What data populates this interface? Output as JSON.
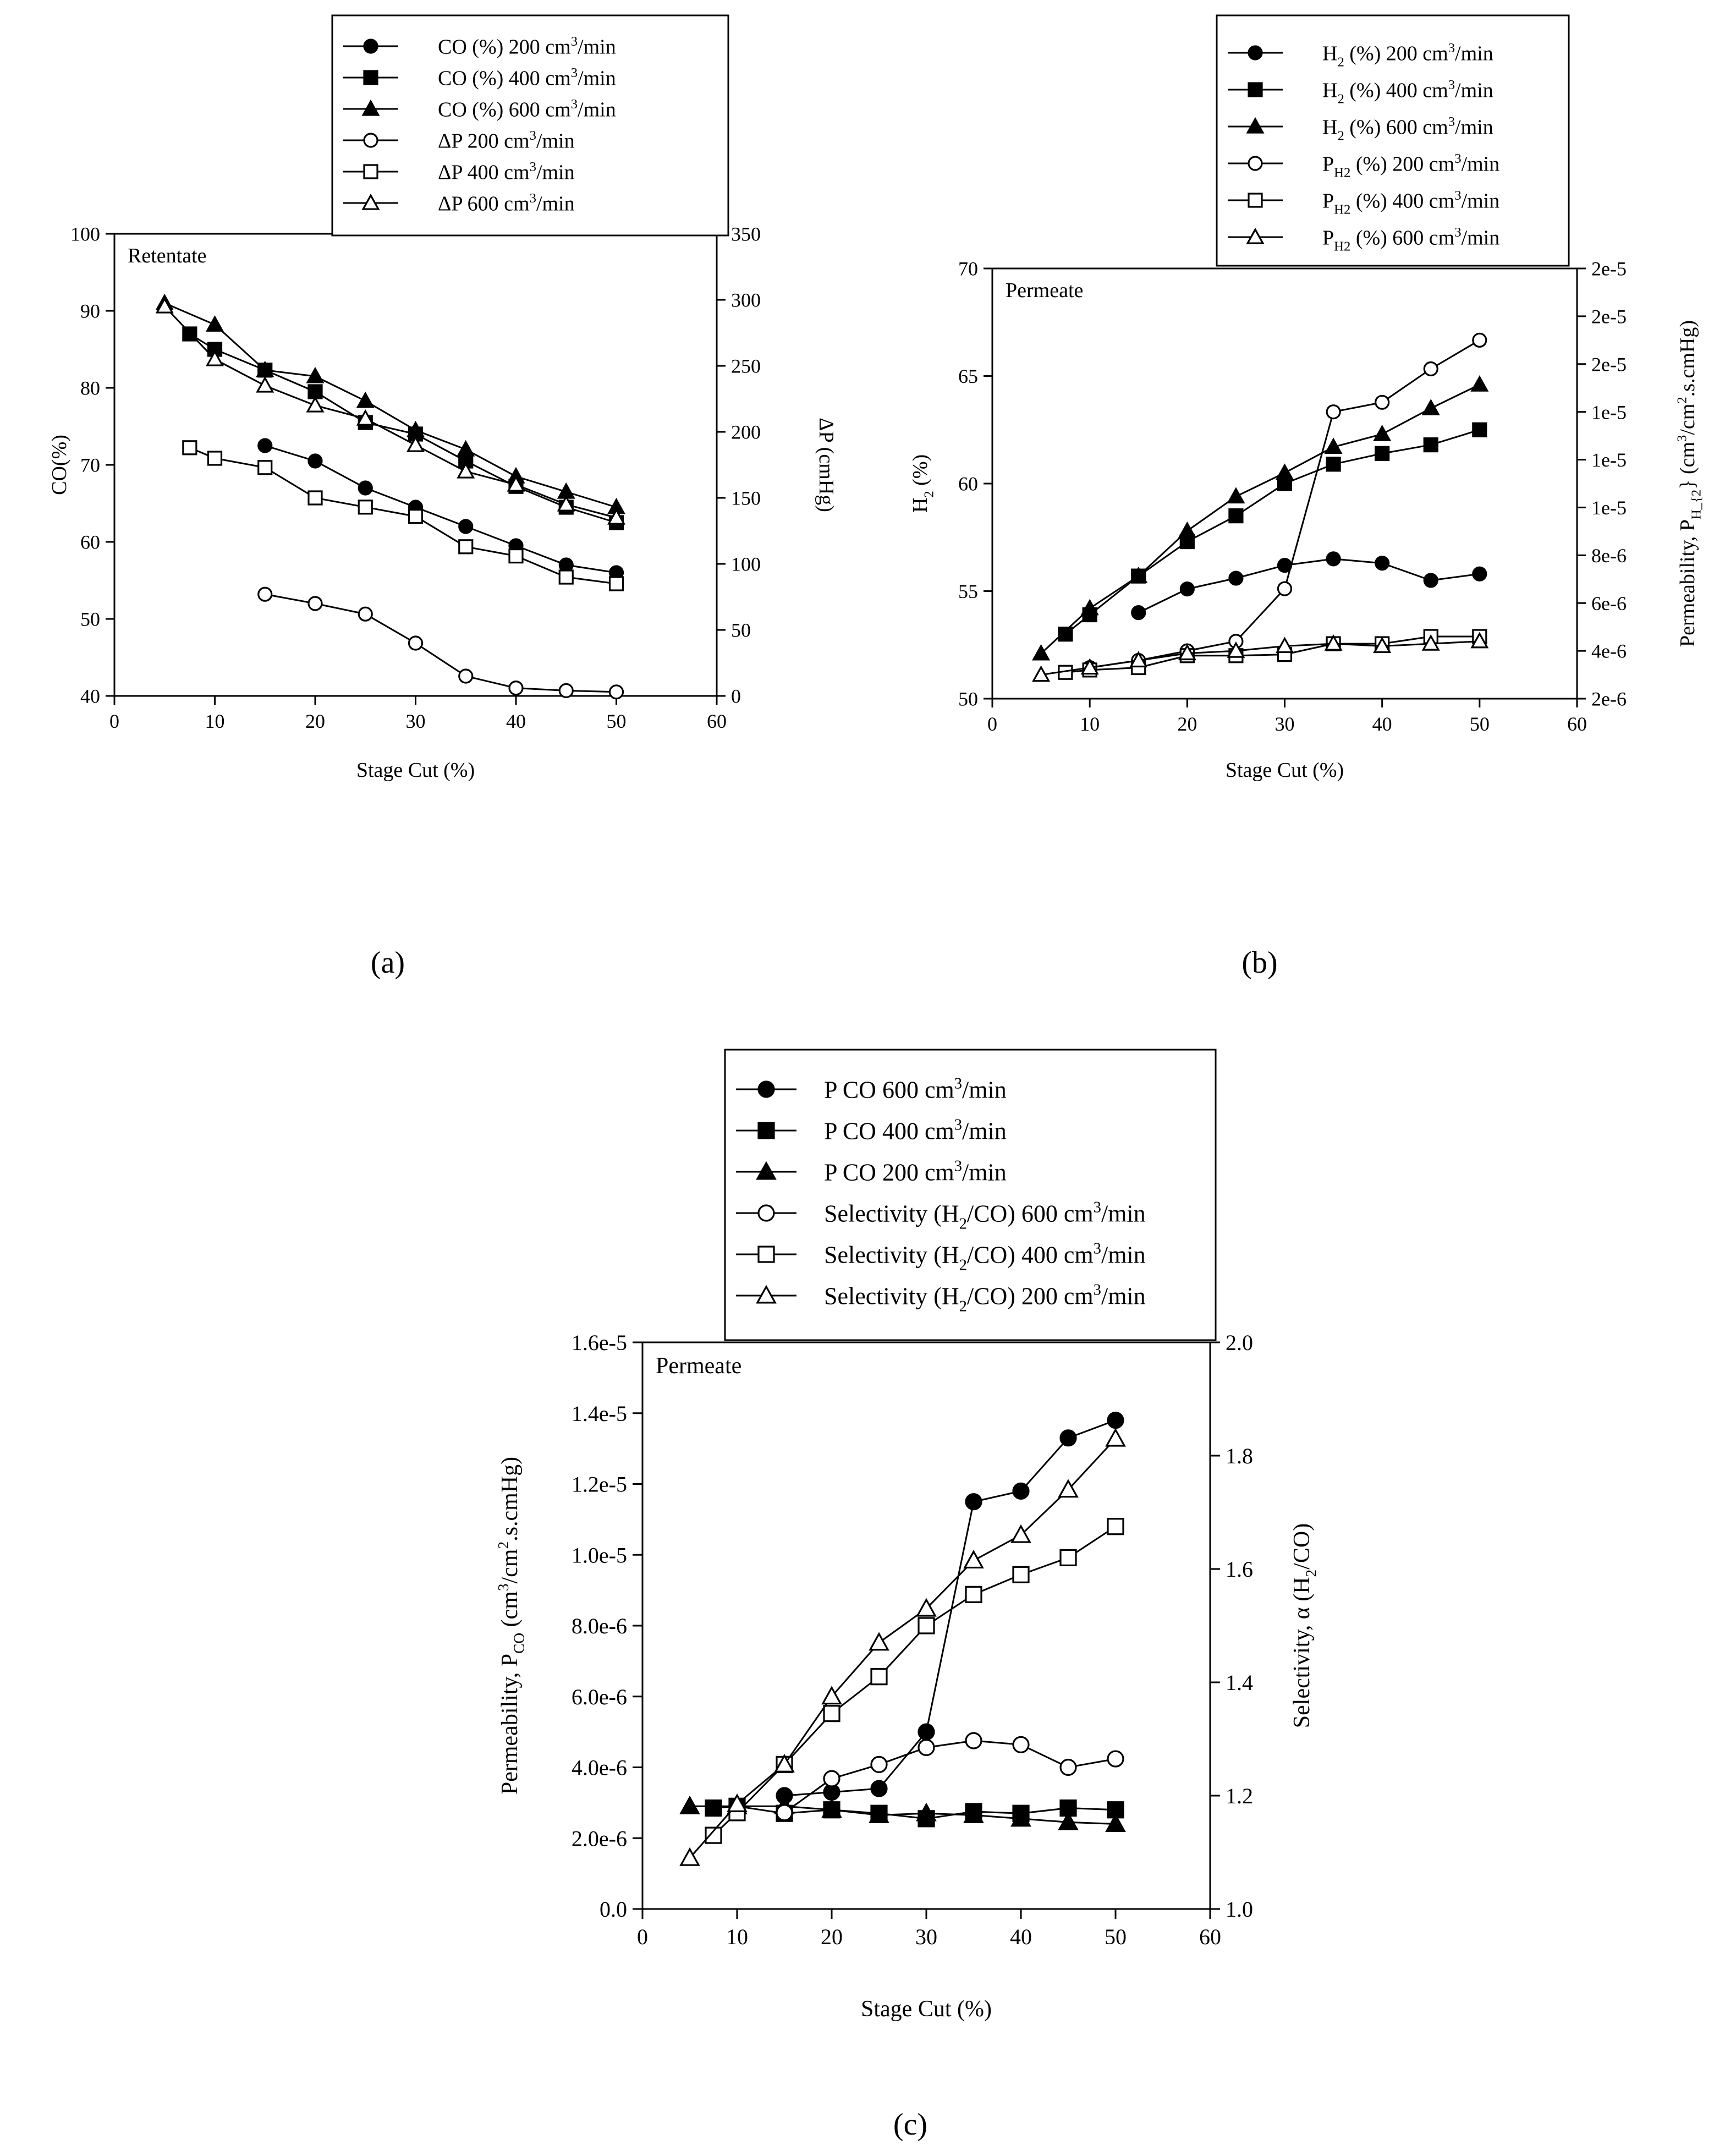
{
  "chart_data": [
    {
      "panel": "a",
      "caption": "(a)",
      "type": "line",
      "annotation": "Retentate",
      "xlabel": "Stage Cut (%)",
      "ylabel_left": "CO(%)",
      "ylabel_right": "ΔP (cmHg)",
      "xlim": [
        0,
        60
      ],
      "ylim_left": [
        40,
        100
      ],
      "ylim_right": [
        0,
        350
      ],
      "x_ticks": [
        0,
        10,
        20,
        30,
        40,
        50,
        60
      ],
      "y_ticks_left": [
        40,
        50,
        60,
        70,
        80,
        90,
        100
      ],
      "y_ticks_right": [
        0,
        50,
        100,
        150,
        200,
        250,
        300,
        350
      ],
      "series": [
        {
          "name": "CO (%) 200 cm³/min",
          "axis": "left",
          "marker": "circle",
          "filled": true,
          "x": [
            15,
            20,
            25,
            30,
            35,
            40,
            45,
            50
          ],
          "values": [
            72.5,
            70.5,
            67,
            64.5,
            62,
            59.5,
            57,
            56
          ]
        },
        {
          "name": "CO (%) 400 cm³/min",
          "axis": "left",
          "marker": "square",
          "filled": true,
          "x": [
            7.5,
            10,
            15,
            20,
            25,
            30,
            35,
            40,
            45,
            50
          ],
          "values": [
            87,
            85,
            82.3,
            79.5,
            75.5,
            74,
            70.5,
            67.2,
            64.5,
            62.5
          ]
        },
        {
          "name": "CO (%) 600 cm³/min",
          "axis": "left",
          "marker": "triangle",
          "filled": true,
          "x": [
            5,
            10,
            15,
            20,
            25,
            30,
            35,
            40,
            45,
            50
          ],
          "values": [
            91,
            88.2,
            82.3,
            81.5,
            78.3,
            74.5,
            72,
            68.5,
            66.5,
            64.5
          ]
        },
        {
          "name": "ΔP 200 cm³/min",
          "axis": "right",
          "marker": "circle",
          "filled": false,
          "x": [
            15,
            20,
            25,
            30,
            35,
            40,
            45,
            50
          ],
          "values": [
            77,
            70,
            62,
            40,
            15,
            6,
            4,
            3
          ]
        },
        {
          "name": "ΔP 400 cm³/min",
          "axis": "right",
          "marker": "square",
          "filled": false,
          "x": [
            7.5,
            10,
            15,
            20,
            25,
            30,
            35,
            40,
            45,
            50
          ],
          "values": [
            188,
            180,
            173,
            150,
            143,
            136,
            113,
            106,
            90,
            85
          ]
        },
        {
          "name": "ΔP 600 cm³/min",
          "axis": "right",
          "marker": "triangle",
          "filled": false,
          "x": [
            5,
            10,
            15,
            20,
            25,
            30,
            35,
            40,
            45,
            50
          ],
          "values": [
            295,
            255,
            235,
            220,
            210,
            190,
            170,
            160,
            145,
            135
          ]
        }
      ]
    },
    {
      "panel": "b",
      "caption": "(b)",
      "type": "line",
      "annotation": "Permeate",
      "xlabel": "Stage Cut (%)",
      "ylabel_left": "H₂ (%)",
      "ylabel_right": "Permeability, P",
      "ylabel_right_subscript": "H₂",
      "ylabel_right_units": "(cm³/cm².s.cmHg)",
      "xlim": [
        0,
        60
      ],
      "ylim_left": [
        50,
        70
      ],
      "ylim_right": [
        2e-06,
        2e-05
      ],
      "x_ticks": [
        0,
        10,
        20,
        30,
        40,
        50,
        60
      ],
      "y_ticks_left": [
        50,
        55,
        60,
        65,
        70
      ],
      "y_tick_labels_right": [
        "2e-6",
        "4e-6",
        "6e-6",
        "8e-6",
        "1e-5",
        "1e-5",
        "1e-5",
        "2e-5",
        "2e-5",
        "2e-5"
      ],
      "series": [
        {
          "name": "H₂ (%) 200 cm³/min",
          "axis": "left",
          "marker": "circle",
          "filled": true,
          "x": [
            15,
            20,
            25,
            30,
            35,
            40,
            45,
            50
          ],
          "values": [
            54,
            55.1,
            55.6,
            56.2,
            56.5,
            56.3,
            55.5,
            55.8
          ]
        },
        {
          "name": "H₂ (%) 400 cm³/min",
          "axis": "left",
          "marker": "square",
          "filled": true,
          "x": [
            7.5,
            10,
            15,
            20,
            25,
            30,
            35,
            40,
            45,
            50
          ],
          "values": [
            53,
            53.9,
            55.7,
            57.3,
            58.5,
            60,
            60.9,
            61.4,
            61.8,
            62.5
          ]
        },
        {
          "name": "H₂ (%) 600 cm³/min",
          "axis": "left",
          "marker": "triangle",
          "filled": true,
          "x": [
            5,
            10,
            15,
            20,
            25,
            30,
            35,
            40,
            45,
            50
          ],
          "values": [
            52.1,
            54.2,
            55.7,
            57.8,
            59.4,
            60.5,
            61.7,
            62.3,
            63.5,
            64.6
          ]
        },
        {
          "name": "P H₂ (%) 200 cm³/min",
          "axis": "right",
          "marker": "circle",
          "filled": false,
          "x": [
            10,
            15,
            20,
            25,
            30,
            35,
            40,
            45,
            50
          ],
          "values": [
            3.3e-06,
            3.6e-06,
            4e-06,
            4.4e-06,
            6.6e-06,
            1.4e-05,
            1.44e-05,
            1.58e-05,
            1.7e-05
          ]
        },
        {
          "name": "P H₂ (%) 400 cm³/min",
          "axis": "right",
          "marker": "square",
          "filled": false,
          "x": [
            7.5,
            10,
            15,
            20,
            25,
            30,
            35,
            40,
            45,
            50
          ],
          "values": [
            3.1e-06,
            3.2e-06,
            3.3e-06,
            3.8e-06,
            3.8e-06,
            3.85e-06,
            4.3e-06,
            4.3e-06,
            4.6e-06,
            4.6e-06
          ]
        },
        {
          "name": "P H₂ (%) 600 cm³/min",
          "axis": "right",
          "marker": "triangle",
          "filled": false,
          "x": [
            5,
            10,
            15,
            20,
            25,
            30,
            35,
            40,
            45,
            50
          ],
          "values": [
            3e-06,
            3.3e-06,
            3.6e-06,
            3.9e-06,
            4e-06,
            4.2e-06,
            4.3e-06,
            4.2e-06,
            4.3e-06,
            4.4e-06
          ]
        }
      ]
    },
    {
      "panel": "c",
      "caption": "(c)",
      "type": "line",
      "annotation": "Permeate",
      "xlabel": "Stage Cut (%)",
      "ylabel_left": "Permeability, P",
      "ylabel_left_subscript": "CO",
      "ylabel_left_units": "(cm³/cm².s.cmHg)",
      "ylabel_right": "Selectivity, α (H₂/CO)",
      "xlim": [
        0,
        60
      ],
      "ylim_left": [
        0,
        1.6e-05
      ],
      "ylim_right": [
        1.0,
        2.0
      ],
      "x_ticks": [
        0,
        10,
        20,
        30,
        40,
        50,
        60
      ],
      "y_tick_labels_left": [
        "0.0",
        "2.0e-6",
        "4.0e-6",
        "6.0e-6",
        "8.0e-6",
        "1.0e-5",
        "1.2e-5",
        "1.4e-5",
        "1.6e-5"
      ],
      "y_ticks_right": [
        "1.0",
        "1.2",
        "1.4",
        "1.6",
        "1.8",
        "2.0"
      ],
      "series": [
        {
          "name": "P CO 600 cm³/min",
          "axis": "left",
          "marker": "circle",
          "filled": true,
          "x": [
            15,
            20,
            25,
            30,
            35,
            40,
            45,
            50
          ],
          "values": [
            3.2e-06,
            3.3e-06,
            3.4e-06,
            5e-06,
            1.15e-05,
            1.18e-05,
            1.33e-05,
            1.38e-05
          ]
        },
        {
          "name": "P CO 400 cm³/min",
          "axis": "left",
          "marker": "square",
          "filled": true,
          "x": [
            7.5,
            10,
            15,
            20,
            25,
            30,
            35,
            40,
            45,
            50
          ],
          "values": [
            2.85e-06,
            2.9e-06,
            2.7e-06,
            2.8e-06,
            2.7e-06,
            2.55e-06,
            2.75e-06,
            2.7e-06,
            2.85e-06,
            2.8e-06
          ]
        },
        {
          "name": "P CO 200 cm³/min",
          "axis": "left",
          "marker": "triangle",
          "filled": true,
          "x": [
            5,
            10,
            15,
            20,
            25,
            30,
            35,
            40,
            45,
            50
          ],
          "values": [
            2.9e-06,
            2.9e-06,
            2.9e-06,
            2.8e-06,
            2.65e-06,
            2.7e-06,
            2.65e-06,
            2.55e-06,
            2.45e-06,
            2.4e-06
          ]
        },
        {
          "name": "Selectivity (H₂/CO) 600 cm³/min",
          "axis": "right",
          "marker": "circle",
          "filled": false,
          "x": [
            15,
            20,
            25,
            30,
            35,
            40,
            45,
            50
          ],
          "values": [
            1.17,
            1.23,
            1.255,
            1.285,
            1.297,
            1.29,
            1.25,
            1.265
          ]
        },
        {
          "name": "Selectivity (H₂/CO) 400 cm³/min",
          "axis": "right",
          "marker": "square",
          "filled": false,
          "x": [
            7.5,
            10,
            15,
            20,
            25,
            30,
            35,
            40,
            45,
            50
          ],
          "values": [
            1.13,
            1.17,
            1.255,
            1.345,
            1.41,
            1.5,
            1.555,
            1.59,
            1.62,
            1.675
          ]
        },
        {
          "name": "Selectivity (H₂/CO) 200 cm³/min",
          "axis": "right",
          "marker": "triangle",
          "filled": false,
          "x": [
            5,
            10,
            15,
            20,
            25,
            30,
            35,
            40,
            45,
            50
          ],
          "values": [
            1.09,
            1.185,
            1.255,
            1.375,
            1.47,
            1.53,
            1.615,
            1.66,
            1.74,
            1.83
          ]
        }
      ]
    }
  ]
}
